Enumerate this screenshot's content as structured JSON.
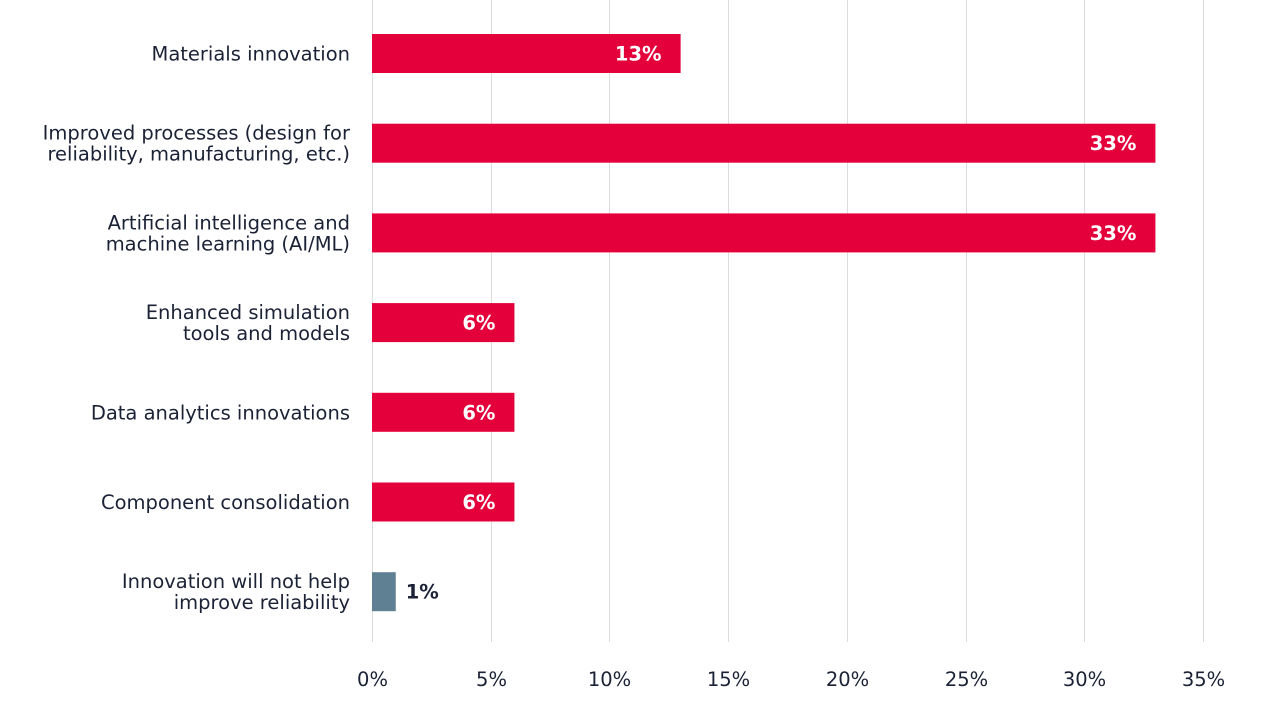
{
  "chart_data": {
    "type": "bar",
    "orientation": "horizontal",
    "categories": [
      [
        "Materials innovation"
      ],
      [
        "Improved processes (design for",
        "reliability, manufacturing, etc.)"
      ],
      [
        "Artificial intelligence and",
        "machine learning (AI/ML)"
      ],
      [
        "Enhanced simulation",
        "tools and models"
      ],
      [
        "Data analytics innovations"
      ],
      [
        "Component consolidation"
      ],
      [
        "Innovation will not help",
        "improve reliability"
      ]
    ],
    "values": [
      13,
      33,
      33,
      6,
      6,
      6,
      1
    ],
    "value_labels": [
      "13%",
      "33%",
      "33%",
      "6%",
      "6%",
      "6%",
      "1%"
    ],
    "bar_colors": [
      "#e4003b",
      "#e4003b",
      "#e4003b",
      "#e4003b",
      "#e4003b",
      "#e4003b",
      "#5f7f92"
    ],
    "label_inside": [
      true,
      true,
      true,
      true,
      true,
      true,
      false
    ],
    "xlim": [
      0,
      35
    ],
    "x_ticks": [
      0,
      5,
      10,
      15,
      20,
      25,
      30,
      35
    ],
    "x_tick_labels": [
      "0%",
      "5%",
      "10%",
      "15%",
      "20%",
      "25%",
      "30%",
      "35%"
    ],
    "grid": true,
    "legend": "none",
    "title": "",
    "xlabel": "",
    "ylabel": ""
  }
}
